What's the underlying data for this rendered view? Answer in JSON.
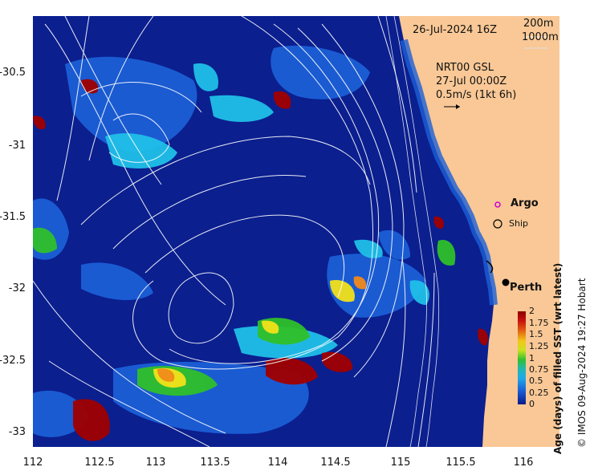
{
  "overlay": {
    "date_label": "26-Jul-2024 16Z",
    "depth_contour_1": "200m",
    "depth_contour_2": "1000m",
    "current_product": "NRT00 GSL",
    "current_time": "27-Jul 00:00Z",
    "current_scale": "0.5m/s (1kt 6h)",
    "argo_label": "Argo",
    "ship_label": "Ship",
    "city_label": "Perth"
  },
  "axes": {
    "x_ticks": [
      "112",
      "112.5",
      "113",
      "113.5",
      "114",
      "114.5",
      "115",
      "115.5",
      "116"
    ],
    "y_ticks": [
      "-30.5",
      "-31",
      "-31.5",
      "-32",
      "-32.5",
      "-33"
    ]
  },
  "colorbar": {
    "title": "Age (days) of filled SST (wrt latest)",
    "ticks": [
      "2",
      "1.75",
      "1.5",
      "1.25",
      "1",
      "0.75",
      "0.5",
      "0.25",
      "0"
    ]
  },
  "footer": {
    "credit": "© IMOS 09-Aug-2024 19:27 Hobart"
  },
  "colors": {
    "ocean": "#0b1f8f",
    "land": "#f9c896",
    "age_high": "#a00000",
    "age_mid": "#22c022",
    "age_low": "#1565e0",
    "contour": "#ffffff"
  }
}
